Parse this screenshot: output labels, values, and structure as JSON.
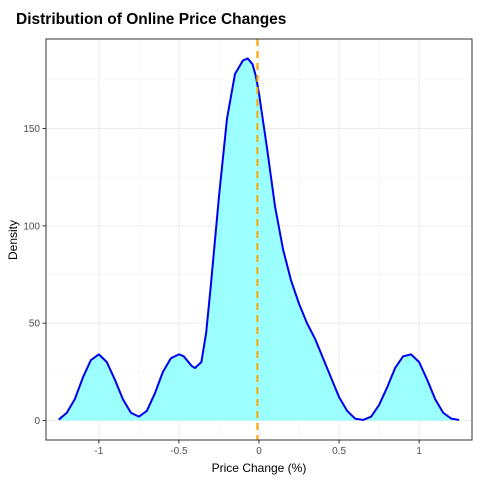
{
  "chart_data": {
    "type": "area",
    "title": "Distribution of Online Price Changes",
    "xlabel": "Price Change (%)",
    "ylabel": "Density",
    "xlim": [
      -1.33,
      1.33
    ],
    "ylim": [
      -10,
      196
    ],
    "x_ticks": [
      -1,
      -0.5,
      0,
      0.5,
      1
    ],
    "x_tick_labels": [
      "-1",
      "-0.5",
      "0",
      "0.5",
      "1"
    ],
    "y_ticks": [
      0,
      50,
      100,
      150
    ],
    "y_tick_labels": [
      "0",
      "50",
      "100",
      "150"
    ],
    "x_minor_ticks": [
      -0.75,
      -0.25,
      0.25,
      0.75
    ],
    "y_minor_ticks": [
      25,
      75,
      125,
      175
    ],
    "grid": true,
    "vline": {
      "x": -0.01,
      "color": "#FFA500",
      "style": "dashed"
    },
    "fill_color": "#9BFFFF",
    "line_color": "#0000EE",
    "series": [
      {
        "x": [
          -1.25,
          -1.2,
          -1.15,
          -1.1,
          -1.05,
          -1.0,
          -0.95,
          -0.9,
          -0.85,
          -0.8,
          -0.75,
          -0.7,
          -0.65,
          -0.6,
          -0.55,
          -0.5,
          -0.47,
          -0.45,
          -0.42,
          -0.4,
          -0.36,
          -0.33,
          -0.3,
          -0.25,
          -0.2,
          -0.15,
          -0.1,
          -0.07,
          -0.04,
          -0.02,
          0.0,
          0.05,
          0.1,
          0.15,
          0.2,
          0.25,
          0.3,
          0.35,
          0.4,
          0.45,
          0.5,
          0.55,
          0.6,
          0.65,
          0.7,
          0.75,
          0.8,
          0.85,
          0.9,
          0.95,
          1.0,
          1.05,
          1.1,
          1.15,
          1.2,
          1.25
        ],
        "y": [
          0.5,
          4,
          11,
          22,
          31,
          34,
          30,
          21,
          11,
          4,
          2,
          5,
          14,
          25,
          32,
          34,
          33,
          31,
          28,
          27,
          30,
          45,
          70,
          115,
          155,
          178,
          185,
          186,
          183,
          177,
          168,
          140,
          110,
          88,
          72,
          60,
          50,
          42,
          32,
          22,
          12,
          5,
          1,
          0.3,
          2,
          8,
          17,
          27,
          33,
          34,
          30,
          21,
          11,
          4,
          1,
          0.3
        ]
      }
    ]
  }
}
